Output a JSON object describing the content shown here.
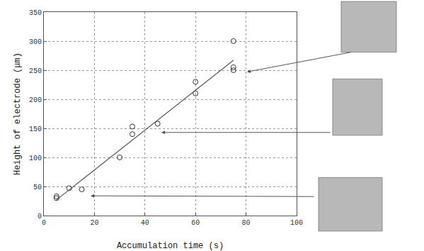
{
  "chart_data": {
    "type": "scatter",
    "x_label": "Accumulation time (s)",
    "y_label": "Height of electrode (μm)",
    "series": [
      {
        "type": "scatter",
        "marker": "circle-open",
        "color": "#333333",
        "x": [
          5,
          5,
          10,
          15,
          30,
          35,
          35,
          45,
          60,
          60,
          75,
          75,
          75
        ],
        "values": [
          30,
          33,
          47,
          45,
          100,
          140,
          153,
          158,
          210,
          230,
          300,
          250,
          255
        ]
      },
      {
        "type": "line",
        "line_style": "solid",
        "color": "#555555",
        "x": [
          5,
          75
        ],
        "values": [
          27,
          267
        ]
      }
    ],
    "xlim": [
      0,
      100
    ],
    "xticks": [
      0,
      20,
      40,
      60,
      80,
      100
    ],
    "ylim": [
      0,
      350
    ],
    "yticks": [
      0,
      50,
      100,
      150,
      200,
      250,
      300,
      350
    ],
    "grid": true
  }
}
